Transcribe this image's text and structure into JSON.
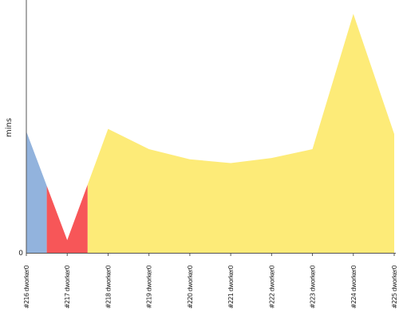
{
  "chart_data": {
    "type": "area",
    "ylabel": "mins",
    "xlabel": "",
    "title": "",
    "categories": [
      "#216 dworker0",
      "#217 dworker0",
      "#218 dworker0",
      "#219 dworker0",
      "#220 dworker0",
      "#221 dworker0",
      "#222 dworker0",
      "#223 dworker0",
      "#224 dworker0",
      "#225 dworker0"
    ],
    "values": [
      4.8,
      0.5,
      4.9,
      4.1,
      3.7,
      3.55,
      3.75,
      4.1,
      9.45,
      4.7
    ],
    "y_tick_labels": [
      "0"
    ],
    "ylim": [
      0,
      10
    ],
    "segment_colors": [
      "#92b3dd",
      "#f75658",
      "#fdeb78"
    ],
    "segment_boundaries": [
      0.5,
      1.5
    ],
    "grid": false
  }
}
